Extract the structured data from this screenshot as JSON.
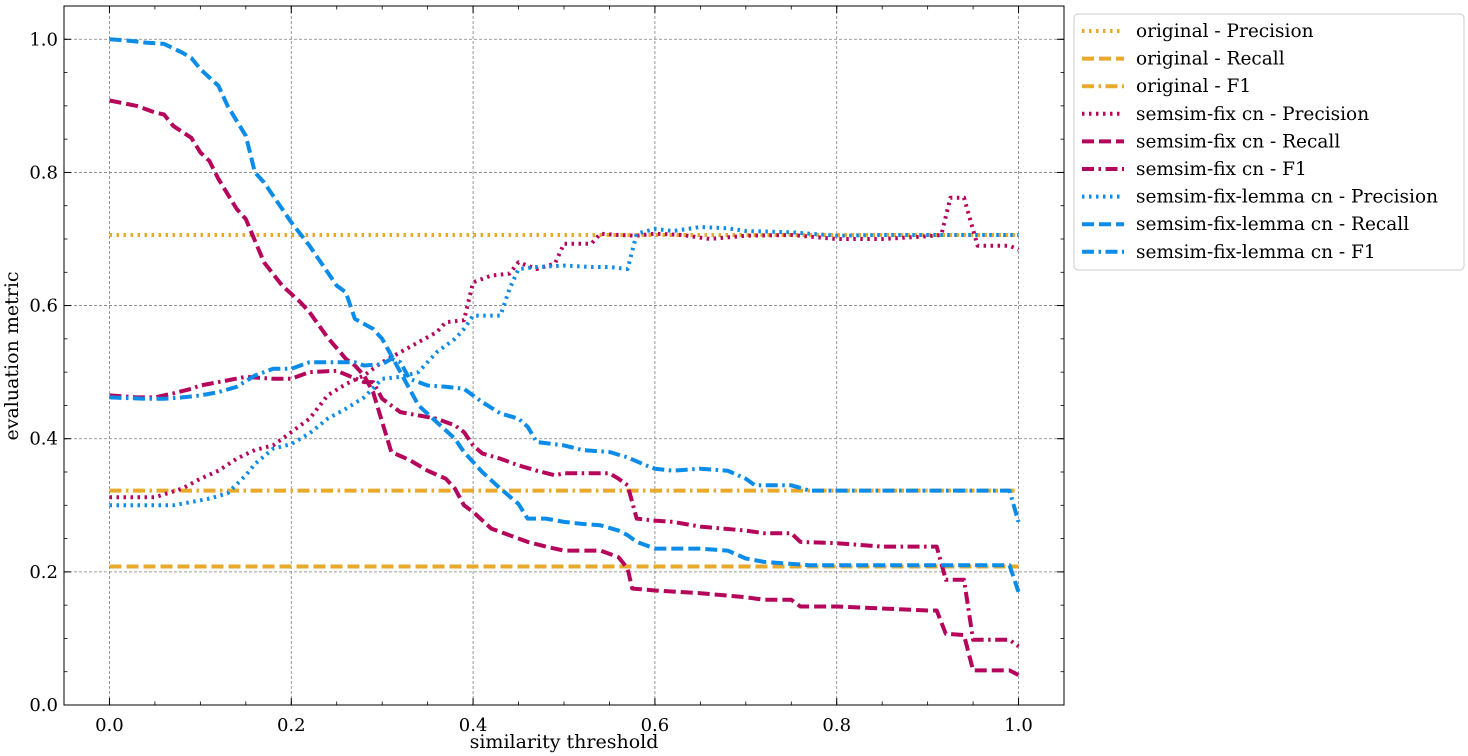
{
  "chart_data": {
    "type": "line",
    "title": "",
    "xlabel": "similarity threshold",
    "ylabel": "evaluation metric",
    "xlim": [
      -0.05,
      1.05
    ],
    "ylim": [
      0.0,
      1.05
    ],
    "xticks": [
      0.0,
      0.2,
      0.4,
      0.6,
      0.8,
      1.0
    ],
    "xtick_labels": [
      "0.0",
      "0.2",
      "0.4",
      "0.6",
      "0.8",
      "1.0"
    ],
    "yticks": [
      0.0,
      0.2,
      0.4,
      0.6,
      0.8,
      1.0
    ],
    "ytick_labels": [
      "0.0",
      "0.2",
      "0.4",
      "0.6",
      "0.8",
      "1.0"
    ],
    "grid": true,
    "legend_position": "outside-top-right",
    "series": [
      {
        "name": "original - Precision",
        "color": "#E9A92A",
        "style": "dotted",
        "points": [
          [
            0,
            0.706
          ],
          [
            1,
            0.706
          ]
        ]
      },
      {
        "name": "original - Recall",
        "color": "#E9A92A",
        "style": "dashed",
        "points": [
          [
            0,
            0.208
          ],
          [
            1,
            0.208
          ]
        ]
      },
      {
        "name": "original - F1",
        "color": "#E9A92A",
        "style": "dashdot",
        "points": [
          [
            0,
            0.322
          ],
          [
            1,
            0.322
          ]
        ]
      },
      {
        "name": "semsim-fix cn - Precision",
        "color": "#B5065B",
        "style": "dotted",
        "points": [
          [
            0,
            0.312
          ],
          [
            0.05,
            0.312
          ],
          [
            0.08,
            0.325
          ],
          [
            0.1,
            0.34
          ],
          [
            0.12,
            0.352
          ],
          [
            0.14,
            0.37
          ],
          [
            0.16,
            0.383
          ],
          [
            0.18,
            0.39
          ],
          [
            0.2,
            0.41
          ],
          [
            0.22,
            0.43
          ],
          [
            0.24,
            0.465
          ],
          [
            0.26,
            0.482
          ],
          [
            0.28,
            0.495
          ],
          [
            0.3,
            0.515
          ],
          [
            0.32,
            0.53
          ],
          [
            0.34,
            0.545
          ],
          [
            0.36,
            0.56
          ],
          [
            0.37,
            0.575
          ],
          [
            0.39,
            0.578
          ],
          [
            0.4,
            0.635
          ],
          [
            0.42,
            0.645
          ],
          [
            0.44,
            0.648
          ],
          [
            0.45,
            0.665
          ],
          [
            0.47,
            0.655
          ],
          [
            0.49,
            0.663
          ],
          [
            0.5,
            0.693
          ],
          [
            0.53,
            0.693
          ],
          [
            0.54,
            0.708
          ],
          [
            0.56,
            0.706
          ],
          [
            0.58,
            0.705
          ],
          [
            0.6,
            0.708
          ],
          [
            0.63,
            0.706
          ],
          [
            0.66,
            0.7
          ],
          [
            0.7,
            0.705
          ],
          [
            0.75,
            0.706
          ],
          [
            0.8,
            0.7
          ],
          [
            0.85,
            0.7
          ],
          [
            0.9,
            0.704
          ],
          [
            0.915,
            0.706
          ],
          [
            0.925,
            0.762
          ],
          [
            0.94,
            0.762
          ],
          [
            0.955,
            0.69
          ],
          [
            0.99,
            0.69
          ],
          [
            1.0,
            0.684
          ]
        ]
      },
      {
        "name": "semsim-fix cn - Recall",
        "color": "#B5065B",
        "style": "dashed",
        "points": [
          [
            0,
            0.908
          ],
          [
            0.03,
            0.9
          ],
          [
            0.05,
            0.89
          ],
          [
            0.06,
            0.887
          ],
          [
            0.07,
            0.87
          ],
          [
            0.09,
            0.852
          ],
          [
            0.1,
            0.83
          ],
          [
            0.11,
            0.817
          ],
          [
            0.12,
            0.79
          ],
          [
            0.14,
            0.745
          ],
          [
            0.15,
            0.73
          ],
          [
            0.17,
            0.665
          ],
          [
            0.19,
            0.63
          ],
          [
            0.21,
            0.605
          ],
          [
            0.22,
            0.59
          ],
          [
            0.24,
            0.552
          ],
          [
            0.26,
            0.52
          ],
          [
            0.27,
            0.51
          ],
          [
            0.28,
            0.495
          ],
          [
            0.29,
            0.47
          ],
          [
            0.3,
            0.425
          ],
          [
            0.31,
            0.38
          ],
          [
            0.33,
            0.368
          ],
          [
            0.35,
            0.352
          ],
          [
            0.37,
            0.34
          ],
          [
            0.38,
            0.325
          ],
          [
            0.39,
            0.3
          ],
          [
            0.4,
            0.29
          ],
          [
            0.42,
            0.265
          ],
          [
            0.44,
            0.255
          ],
          [
            0.46,
            0.245
          ],
          [
            0.48,
            0.238
          ],
          [
            0.5,
            0.232
          ],
          [
            0.54,
            0.232
          ],
          [
            0.56,
            0.222
          ],
          [
            0.57,
            0.205
          ],
          [
            0.575,
            0.175
          ],
          [
            0.6,
            0.172
          ],
          [
            0.65,
            0.168
          ],
          [
            0.7,
            0.162
          ],
          [
            0.72,
            0.158
          ],
          [
            0.75,
            0.158
          ],
          [
            0.76,
            0.148
          ],
          [
            0.8,
            0.148
          ],
          [
            0.9,
            0.142
          ],
          [
            0.91,
            0.142
          ],
          [
            0.92,
            0.107
          ],
          [
            0.94,
            0.105
          ],
          [
            0.95,
            0.052
          ],
          [
            0.99,
            0.052
          ],
          [
            1.0,
            0.045
          ]
        ]
      },
      {
        "name": "semsim-fix cn - F1",
        "color": "#B5065B",
        "style": "dashdot",
        "points": [
          [
            0,
            0.465
          ],
          [
            0.03,
            0.462
          ],
          [
            0.05,
            0.462
          ],
          [
            0.07,
            0.468
          ],
          [
            0.09,
            0.475
          ],
          [
            0.1,
            0.48
          ],
          [
            0.12,
            0.485
          ],
          [
            0.15,
            0.493
          ],
          [
            0.18,
            0.49
          ],
          [
            0.2,
            0.49
          ],
          [
            0.22,
            0.5
          ],
          [
            0.25,
            0.502
          ],
          [
            0.28,
            0.485
          ],
          [
            0.29,
            0.485
          ],
          [
            0.3,
            0.46
          ],
          [
            0.32,
            0.44
          ],
          [
            0.34,
            0.435
          ],
          [
            0.36,
            0.43
          ],
          [
            0.38,
            0.42
          ],
          [
            0.39,
            0.41
          ],
          [
            0.4,
            0.39
          ],
          [
            0.41,
            0.378
          ],
          [
            0.43,
            0.37
          ],
          [
            0.45,
            0.36
          ],
          [
            0.47,
            0.352
          ],
          [
            0.49,
            0.345
          ],
          [
            0.5,
            0.348
          ],
          [
            0.53,
            0.348
          ],
          [
            0.55,
            0.348
          ],
          [
            0.56,
            0.34
          ],
          [
            0.57,
            0.33
          ],
          [
            0.58,
            0.28
          ],
          [
            0.6,
            0.277
          ],
          [
            0.62,
            0.275
          ],
          [
            0.65,
            0.268
          ],
          [
            0.7,
            0.262
          ],
          [
            0.72,
            0.258
          ],
          [
            0.75,
            0.258
          ],
          [
            0.76,
            0.245
          ],
          [
            0.8,
            0.243
          ],
          [
            0.83,
            0.24
          ],
          [
            0.85,
            0.238
          ],
          [
            0.91,
            0.238
          ],
          [
            0.92,
            0.188
          ],
          [
            0.94,
            0.188
          ],
          [
            0.95,
            0.098
          ],
          [
            0.99,
            0.098
          ],
          [
            1.0,
            0.088
          ]
        ]
      },
      {
        "name": "semsim-fix-lemma cn - Precision",
        "color": "#0C8CE9",
        "style": "dotted",
        "points": [
          [
            0,
            0.3
          ],
          [
            0.03,
            0.3
          ],
          [
            0.07,
            0.3
          ],
          [
            0.09,
            0.305
          ],
          [
            0.11,
            0.31
          ],
          [
            0.13,
            0.318
          ],
          [
            0.15,
            0.345
          ],
          [
            0.16,
            0.362
          ],
          [
            0.18,
            0.385
          ],
          [
            0.2,
            0.392
          ],
          [
            0.22,
            0.408
          ],
          [
            0.24,
            0.43
          ],
          [
            0.26,
            0.445
          ],
          [
            0.28,
            0.462
          ],
          [
            0.3,
            0.49
          ],
          [
            0.32,
            0.493
          ],
          [
            0.34,
            0.5
          ],
          [
            0.36,
            0.53
          ],
          [
            0.38,
            0.55
          ],
          [
            0.39,
            0.565
          ],
          [
            0.4,
            0.585
          ],
          [
            0.43,
            0.585
          ],
          [
            0.44,
            0.625
          ],
          [
            0.45,
            0.655
          ],
          [
            0.47,
            0.658
          ],
          [
            0.5,
            0.66
          ],
          [
            0.53,
            0.658
          ],
          [
            0.55,
            0.658
          ],
          [
            0.57,
            0.655
          ],
          [
            0.58,
            0.708
          ],
          [
            0.6,
            0.715
          ],
          [
            0.62,
            0.712
          ],
          [
            0.65,
            0.718
          ],
          [
            0.68,
            0.716
          ],
          [
            0.7,
            0.712
          ],
          [
            0.75,
            0.71
          ],
          [
            0.8,
            0.705
          ],
          [
            0.85,
            0.706
          ],
          [
            0.9,
            0.706
          ],
          [
            0.95,
            0.706
          ],
          [
            1.0,
            0.706
          ]
        ]
      },
      {
        "name": "semsim-fix-lemma cn - Recall",
        "color": "#0C8CE9",
        "style": "dashed",
        "points": [
          [
            0,
            1.0
          ],
          [
            0.02,
            0.998
          ],
          [
            0.04,
            0.995
          ],
          [
            0.06,
            0.993
          ],
          [
            0.08,
            0.98
          ],
          [
            0.09,
            0.972
          ],
          [
            0.1,
            0.955
          ],
          [
            0.12,
            0.93
          ],
          [
            0.13,
            0.9
          ],
          [
            0.15,
            0.855
          ],
          [
            0.16,
            0.8
          ],
          [
            0.17,
            0.785
          ],
          [
            0.18,
            0.765
          ],
          [
            0.2,
            0.725
          ],
          [
            0.22,
            0.69
          ],
          [
            0.24,
            0.65
          ],
          [
            0.25,
            0.63
          ],
          [
            0.26,
            0.62
          ],
          [
            0.27,
            0.58
          ],
          [
            0.29,
            0.565
          ],
          [
            0.3,
            0.55
          ],
          [
            0.32,
            0.5
          ],
          [
            0.34,
            0.45
          ],
          [
            0.36,
            0.425
          ],
          [
            0.38,
            0.4
          ],
          [
            0.39,
            0.38
          ],
          [
            0.41,
            0.35
          ],
          [
            0.43,
            0.325
          ],
          [
            0.45,
            0.302
          ],
          [
            0.46,
            0.28
          ],
          [
            0.48,
            0.28
          ],
          [
            0.5,
            0.275
          ],
          [
            0.52,
            0.272
          ],
          [
            0.54,
            0.27
          ],
          [
            0.56,
            0.262
          ],
          [
            0.57,
            0.255
          ],
          [
            0.58,
            0.245
          ],
          [
            0.6,
            0.235
          ],
          [
            0.62,
            0.235
          ],
          [
            0.65,
            0.235
          ],
          [
            0.68,
            0.232
          ],
          [
            0.7,
            0.22
          ],
          [
            0.72,
            0.215
          ],
          [
            0.75,
            0.212
          ],
          [
            0.77,
            0.21
          ],
          [
            0.8,
            0.21
          ],
          [
            0.85,
            0.21
          ],
          [
            0.9,
            0.21
          ],
          [
            0.95,
            0.21
          ],
          [
            0.99,
            0.21
          ],
          [
            1.0,
            0.17
          ]
        ]
      },
      {
        "name": "semsim-fix-lemma cn - F1",
        "color": "#0C8CE9",
        "style": "dashdot",
        "points": [
          [
            0,
            0.462
          ],
          [
            0.04,
            0.46
          ],
          [
            0.06,
            0.46
          ],
          [
            0.08,
            0.462
          ],
          [
            0.1,
            0.465
          ],
          [
            0.12,
            0.47
          ],
          [
            0.14,
            0.478
          ],
          [
            0.16,
            0.495
          ],
          [
            0.18,
            0.505
          ],
          [
            0.2,
            0.505
          ],
          [
            0.22,
            0.515
          ],
          [
            0.25,
            0.515
          ],
          [
            0.27,
            0.515
          ],
          [
            0.28,
            0.51
          ],
          [
            0.3,
            0.512
          ],
          [
            0.31,
            0.52
          ],
          [
            0.32,
            0.515
          ],
          [
            0.33,
            0.49
          ],
          [
            0.35,
            0.48
          ],
          [
            0.37,
            0.478
          ],
          [
            0.39,
            0.475
          ],
          [
            0.41,
            0.455
          ],
          [
            0.43,
            0.438
          ],
          [
            0.45,
            0.43
          ],
          [
            0.46,
            0.418
          ],
          [
            0.47,
            0.395
          ],
          [
            0.5,
            0.39
          ],
          [
            0.52,
            0.383
          ],
          [
            0.55,
            0.38
          ],
          [
            0.57,
            0.372
          ],
          [
            0.59,
            0.36
          ],
          [
            0.6,
            0.355
          ],
          [
            0.62,
            0.352
          ],
          [
            0.65,
            0.355
          ],
          [
            0.68,
            0.352
          ],
          [
            0.7,
            0.34
          ],
          [
            0.71,
            0.33
          ],
          [
            0.75,
            0.33
          ],
          [
            0.77,
            0.322
          ],
          [
            0.8,
            0.322
          ],
          [
            0.85,
            0.322
          ],
          [
            0.9,
            0.322
          ],
          [
            0.95,
            0.322
          ],
          [
            0.99,
            0.322
          ],
          [
            1.0,
            0.275
          ]
        ]
      }
    ]
  }
}
